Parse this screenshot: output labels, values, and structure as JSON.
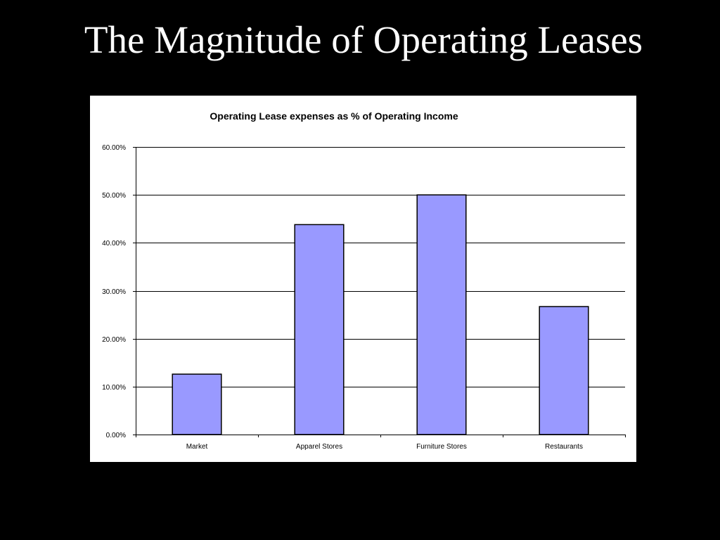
{
  "slide": {
    "title": "The Magnitude of Operating Leases"
  },
  "colors": {
    "background": "#000000",
    "panel": "#ffffff",
    "bar_fill": "#9999ff",
    "bar_stroke": "#000000",
    "gridline": "#000000"
  },
  "chart_data": {
    "type": "bar",
    "title": "Operating Lease expenses as % of Operating Income",
    "xlabel": "",
    "ylabel": "",
    "categories": [
      "Market",
      "Apparel Stores",
      "Furniture Stores",
      "Restaurants"
    ],
    "values": [
      0.126,
      0.438,
      0.5,
      0.267
    ],
    "ylim": [
      0,
      0.6
    ],
    "yticks": [
      0,
      0.1,
      0.2,
      0.3,
      0.4,
      0.5,
      0.6
    ],
    "ytick_labels": [
      "0.00%",
      "10.00%",
      "20.00%",
      "30.00%",
      "40.00%",
      "50.00%",
      "60.00%"
    ],
    "grid": true,
    "legend": "none"
  }
}
